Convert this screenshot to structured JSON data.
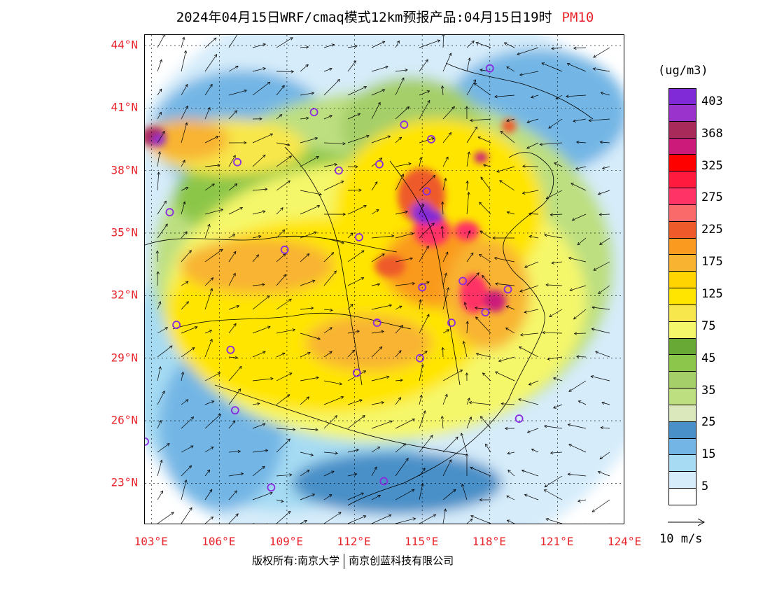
{
  "title": {
    "text": "2024年04月15日WRF/cmaq模式12km预报产品:04月15日19时",
    "pollutant": "PM10"
  },
  "map": {
    "lat_labels": [
      "44°N",
      "41°N",
      "38°N",
      "35°N",
      "32°N",
      "29°N",
      "26°N",
      "23°N"
    ],
    "lon_labels": [
      "103°E",
      "106°E",
      "109°E",
      "112°E",
      "115°E",
      "118°E",
      "121°E",
      "124°E"
    ],
    "lat_range": [
      21.0,
      44.5
    ],
    "lon_range": [
      102.7,
      124.0
    ],
    "projection_lines": "dotted lat/lon grid",
    "vector_field": "wind arrows",
    "station_marker_color": "#8a2be2"
  },
  "colorbar": {
    "unit": "(ug/m3)",
    "colors": [
      "#ffffff",
      "#d6ecfa",
      "#a6dbf3",
      "#73b6e5",
      "#4a90c8",
      "#dbe8bc",
      "#bddf80",
      "#a5cf69",
      "#8cc64a",
      "#68a834",
      "#f5f76a",
      "#f8e74c",
      "#ffe500",
      "#ffd400",
      "#f8b431",
      "#fa9a1e",
      "#ee5a2a",
      "#fa6a6a",
      "#ff3366",
      "#ff1a3e",
      "#ff0000",
      "#cc1a7a",
      "#a82a5a",
      "#9933cc",
      "#7f2ad6"
    ],
    "labels": [
      "5",
      "15",
      "25",
      "35",
      "45",
      "75",
      "125",
      "175",
      "225",
      "275",
      "325",
      "368",
      "403"
    ]
  },
  "wind_reference": {
    "label": "10 m/s"
  },
  "credit": {
    "owner": "版权所有:南京大学",
    "company": "南京创蓝科技有限公司"
  },
  "stations": [
    {
      "lon": 118.0,
      "lat": 42.9
    },
    {
      "lon": 110.2,
      "lat": 40.8
    },
    {
      "lon": 114.2,
      "lat": 40.2
    },
    {
      "lon": 115.4,
      "lat": 39.5
    },
    {
      "lon": 113.1,
      "lat": 38.3
    },
    {
      "lon": 111.3,
      "lat": 38.0
    },
    {
      "lon": 106.8,
      "lat": 38.4
    },
    {
      "lon": 103.8,
      "lat": 36.0
    },
    {
      "lon": 115.2,
      "lat": 37.0
    },
    {
      "lon": 112.2,
      "lat": 34.8
    },
    {
      "lon": 108.9,
      "lat": 34.2
    },
    {
      "lon": 118.8,
      "lat": 32.3
    },
    {
      "lon": 116.8,
      "lat": 32.7
    },
    {
      "lon": 115.0,
      "lat": 32.4
    },
    {
      "lon": 117.8,
      "lat": 31.2
    },
    {
      "lon": 116.3,
      "lat": 30.7
    },
    {
      "lon": 113.0,
      "lat": 30.7
    },
    {
      "lon": 104.1,
      "lat": 30.6
    },
    {
      "lon": 106.5,
      "lat": 29.4
    },
    {
      "lon": 114.9,
      "lat": 29.0
    },
    {
      "lon": 112.1,
      "lat": 28.3
    },
    {
      "lon": 119.3,
      "lat": 26.1
    },
    {
      "lon": 106.7,
      "lat": 26.5
    },
    {
      "lon": 102.7,
      "lat": 25.0
    },
    {
      "lon": 113.3,
      "lat": 23.1
    },
    {
      "lon": 108.3,
      "lat": 22.8
    }
  ]
}
